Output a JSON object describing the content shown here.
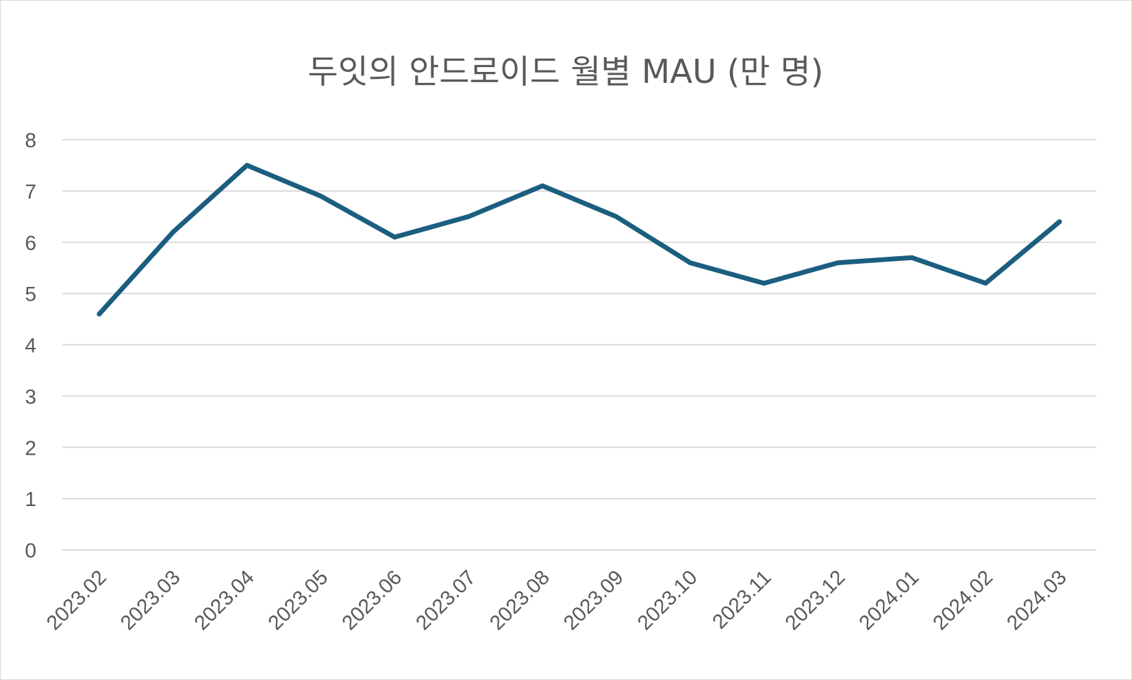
{
  "chart_data": {
    "type": "line",
    "title": "두잇의 안드로이드 월별 MAU (만 명)",
    "xlabel": "",
    "ylabel": "",
    "categories": [
      "2023.02",
      "2023.03",
      "2023.04",
      "2023.05",
      "2023.06",
      "2023.07",
      "2023.08",
      "2023.09",
      "2023.10",
      "2023.11",
      "2023.12",
      "2024.01",
      "2024.02",
      "2024.03"
    ],
    "series": [
      {
        "values": [
          4.6,
          6.2,
          7.5,
          6.9,
          6.1,
          6.5,
          7.1,
          6.5,
          5.6,
          5.2,
          5.6,
          5.7,
          5.2,
          6.4
        ],
        "color": "#1b5e80"
      }
    ],
    "ylim": [
      0,
      8
    ],
    "yticks": [
      0,
      1,
      2,
      3,
      4,
      5,
      6,
      7,
      8
    ],
    "grid": true,
    "legend": "none"
  }
}
